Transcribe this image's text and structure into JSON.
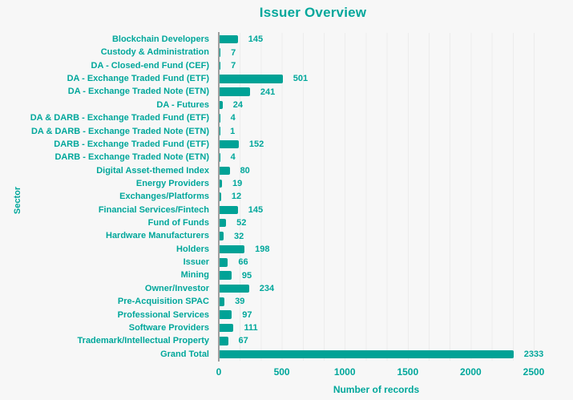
{
  "chart_data": {
    "type": "bar",
    "orientation": "horizontal",
    "title": "Issuer Overview",
    "xlabel": "Number of records",
    "ylabel": "Sector",
    "xlim": [
      0,
      2500
    ],
    "xticks": [
      0,
      500,
      1000,
      1500,
      2000,
      2500
    ],
    "grid": "faint vertical gridlines",
    "legend": "none",
    "categories": [
      "Blockchain Developers",
      "Custody & Administration",
      "DA - Closed-end Fund (CEF)",
      "DA - Exchange Traded Fund (ETF)",
      "DA - Exchange Traded Note (ETN)",
      "DA - Futures",
      "DA & DARB - Exchange Traded Fund (ETF)",
      "DA & DARB - Exchange Traded Note (ETN)",
      "DARB - Exchange Traded Fund (ETF)",
      "DARB - Exchange Traded Note (ETN)",
      "Digital Asset-themed Index",
      "Energy Providers",
      "Exchanges/Platforms",
      "Financial Services/Fintech",
      "Fund of Funds",
      "Hardware Manufacturers",
      "Holders",
      "Issuer",
      "Mining",
      "Owner/Investor",
      "Pre-Acquisition SPAC",
      "Professional Services",
      "Software Providers",
      "Trademark/Intellectual Property",
      "Grand Total"
    ],
    "values": [
      145,
      7,
      7,
      501,
      241,
      24,
      4,
      1,
      152,
      4,
      80,
      19,
      12,
      145,
      52,
      32,
      198,
      66,
      95,
      234,
      39,
      97,
      111,
      67,
      2333
    ],
    "colors": {
      "bar": "#00a296",
      "text": "#00a79b",
      "background": "#f7f7f7",
      "axis": "#9e9e9e",
      "gridline": "#ececec"
    }
  }
}
